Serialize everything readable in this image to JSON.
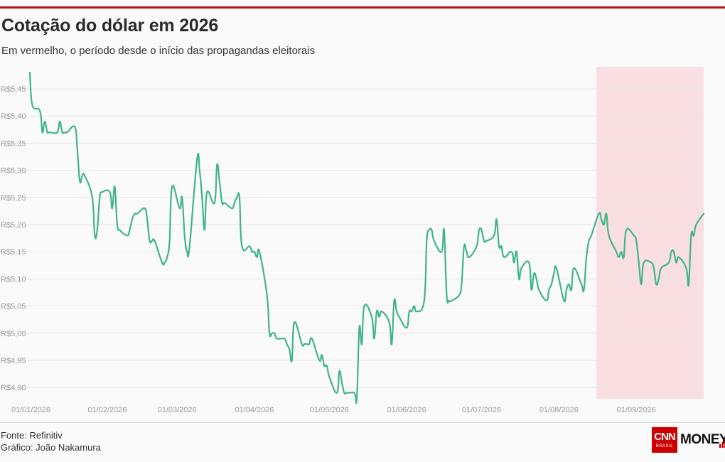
{
  "title": "Cotação do dólar em 2026",
  "subtitle": "Em vermelho, o período desde o início das propagandas eleitorais",
  "footer": {
    "source": "Fonte: Refinitiv",
    "credit": "Gráfico: João Nakamura"
  },
  "logo": {
    "cnn": "CNN",
    "brasil": "BRASIL",
    "money": "MONEY"
  },
  "colors": {
    "top_bar": "#b3141b",
    "line": "#41b48c",
    "highlight": "#f8c8cc",
    "grid": "#e6e6e6",
    "tick_text": "#9a9a9a",
    "brand_red": "#cc0000"
  },
  "chart_data": {
    "type": "line",
    "title": "Cotação do dólar em 2026",
    "subtitle": "Em vermelho, o período desde o início das propagandas eleitorais",
    "x_ticks": [
      "01/01/2026",
      "01/02/2026",
      "01/03/2026",
      "01/04/2026",
      "01/05/2026",
      "01/06/2026",
      "01/07/2026",
      "01/08/2026",
      "01/09/2026"
    ],
    "y_ticks": [
      {
        "value": 5.45,
        "label": "R$5,45"
      },
      {
        "value": 5.4,
        "label": "R$5,40"
      },
      {
        "value": 5.35,
        "label": "R$5,35"
      },
      {
        "value": 5.3,
        "label": "R$5,30"
      },
      {
        "value": 5.25,
        "label": "R$5,25"
      },
      {
        "value": 5.2,
        "label": "R$5,20"
      },
      {
        "value": 5.15,
        "label": "R$5,15"
      },
      {
        "value": 5.1,
        "label": "R$5,10"
      },
      {
        "value": 5.05,
        "label": "R$5,05"
      },
      {
        "value": 5.0,
        "label": "R$5,00"
      },
      {
        "value": 4.95,
        "label": "R$4,95"
      },
      {
        "value": 4.9,
        "label": "R$4,90"
      }
    ],
    "xlim": [
      "2026-01-01",
      "2026-09-28"
    ],
    "ylim": [
      4.88,
      5.49
    ],
    "grid": true,
    "highlight_range": [
      "2026-08-16",
      "2026-09-28"
    ],
    "series": [
      {
        "x": [
          "2026-01-01",
          "2026-01-02",
          "2026-01-05",
          "2026-01-06",
          "2026-01-07",
          "2026-01-08",
          "2026-01-09",
          "2026-01-12",
          "2026-01-13",
          "2026-01-14",
          "2026-01-15",
          "2026-01-16",
          "2026-01-19",
          "2026-01-20",
          "2026-01-21",
          "2026-01-22",
          "2026-01-23",
          "2026-01-26",
          "2026-01-27",
          "2026-01-28",
          "2026-01-29",
          "2026-01-30",
          "2026-02-02",
          "2026-02-03",
          "2026-02-04",
          "2026-02-05",
          "2026-02-06",
          "2026-02-09",
          "2026-02-10",
          "2026-02-11",
          "2026-02-12",
          "2026-02-13",
          "2026-02-16",
          "2026-02-17",
          "2026-02-18",
          "2026-02-19",
          "2026-02-20",
          "2026-02-23",
          "2026-02-24",
          "2026-02-25",
          "2026-02-26",
          "2026-02-27",
          "2026-03-02",
          "2026-03-03",
          "2026-03-04",
          "2026-03-05",
          "2026-03-06",
          "2026-03-09",
          "2026-03-10",
          "2026-03-11",
          "2026-03-12",
          "2026-03-13",
          "2026-03-16",
          "2026-03-17",
          "2026-03-18",
          "2026-03-19",
          "2026-03-20",
          "2026-03-23",
          "2026-03-24",
          "2026-03-25",
          "2026-03-26",
          "2026-03-27",
          "2026-03-30",
          "2026-03-31",
          "2026-04-01",
          "2026-04-02",
          "2026-04-03",
          "2026-04-06",
          "2026-04-07",
          "2026-04-08",
          "2026-04-09",
          "2026-04-10",
          "2026-04-13",
          "2026-04-14",
          "2026-04-15",
          "2026-04-16",
          "2026-04-17",
          "2026-04-20",
          "2026-04-21",
          "2026-04-22",
          "2026-04-23",
          "2026-04-24",
          "2026-04-27",
          "2026-04-28",
          "2026-04-29",
          "2026-04-30",
          "2026-05-01",
          "2026-05-04",
          "2026-05-05",
          "2026-05-06",
          "2026-05-07",
          "2026-05-08",
          "2026-05-11",
          "2026-05-12",
          "2026-05-13",
          "2026-05-14",
          "2026-05-15",
          "2026-05-18",
          "2026-05-19",
          "2026-05-20",
          "2026-05-21",
          "2026-05-22",
          "2026-05-25",
          "2026-05-26",
          "2026-05-27",
          "2026-05-28",
          "2026-05-29",
          "2026-06-01",
          "2026-06-02",
          "2026-06-03",
          "2026-06-04",
          "2026-06-05",
          "2026-06-08",
          "2026-06-09",
          "2026-06-10",
          "2026-06-11",
          "2026-06-12",
          "2026-06-15",
          "2026-06-16",
          "2026-06-17",
          "2026-06-18",
          "2026-06-19",
          "2026-06-22",
          "2026-06-23",
          "2026-06-24",
          "2026-06-25",
          "2026-06-26",
          "2026-06-29",
          "2026-06-30",
          "2026-07-01",
          "2026-07-02",
          "2026-07-03",
          "2026-07-06",
          "2026-07-07",
          "2026-07-08",
          "2026-07-09",
          "2026-07-10",
          "2026-07-13",
          "2026-07-14",
          "2026-07-15",
          "2026-07-16",
          "2026-07-17",
          "2026-07-20",
          "2026-07-21",
          "2026-07-22",
          "2026-07-23",
          "2026-07-24",
          "2026-07-27",
          "2026-07-28",
          "2026-07-29",
          "2026-07-30",
          "2026-07-31",
          "2026-08-03",
          "2026-08-04",
          "2026-08-05",
          "2026-08-06",
          "2026-08-07",
          "2026-08-10",
          "2026-08-11",
          "2026-08-12",
          "2026-08-13",
          "2026-08-14",
          "2026-08-17",
          "2026-08-18",
          "2026-08-19",
          "2026-08-20",
          "2026-08-21",
          "2026-08-24",
          "2026-08-25",
          "2026-08-26",
          "2026-08-27",
          "2026-08-28",
          "2026-08-31",
          "2026-09-01",
          "2026-09-02",
          "2026-09-03",
          "2026-09-04",
          "2026-09-07",
          "2026-09-08",
          "2026-09-09",
          "2026-09-10",
          "2026-09-11",
          "2026-09-14",
          "2026-09-15",
          "2026-09-16",
          "2026-09-17",
          "2026-09-18",
          "2026-09-21",
          "2026-09-22",
          "2026-09-23",
          "2026-09-24",
          "2026-09-25",
          "2026-09-28"
        ],
        "values": [
          5.48,
          5.42,
          5.41,
          5.37,
          5.39,
          5.37,
          5.37,
          5.37,
          5.39,
          5.37,
          5.37,
          5.37,
          5.38,
          5.34,
          5.28,
          5.29,
          5.29,
          5.25,
          5.18,
          5.19,
          5.25,
          5.26,
          5.26,
          5.23,
          5.27,
          5.2,
          5.19,
          5.18,
          5.19,
          5.21,
          5.22,
          5.22,
          5.23,
          5.21,
          5.17,
          5.17,
          5.17,
          5.13,
          5.13,
          5.14,
          5.17,
          5.27,
          5.23,
          5.25,
          5.18,
          5.15,
          5.16,
          5.32,
          5.3,
          5.25,
          5.19,
          5.26,
          5.24,
          5.31,
          5.28,
          5.24,
          5.24,
          5.23,
          5.24,
          5.25,
          5.25,
          5.16,
          5.16,
          5.15,
          5.15,
          5.14,
          5.15,
          5.07,
          5.0,
          5.0,
          5.0,
          4.99,
          4.99,
          4.98,
          4.97,
          4.95,
          5.02,
          4.98,
          4.98,
          4.98,
          4.98,
          4.99,
          4.95,
          4.96,
          4.94,
          4.94,
          4.92,
          4.89,
          4.93,
          4.91,
          4.89,
          4.89,
          4.89,
          4.88,
          5.01,
          4.98,
          5.05,
          5.03,
          4.99,
          5.04,
          5.03,
          5.04,
          5.02,
          4.98,
          5.06,
          5.04,
          5.03,
          5.01,
          5.04,
          5.04,
          5.05,
          5.04,
          5.06,
          5.17,
          5.19,
          5.19,
          5.17,
          5.15,
          5.19,
          5.07,
          5.06,
          5.06,
          5.07,
          5.09,
          5.16,
          5.15,
          5.14,
          5.16,
          5.19,
          5.19,
          5.17,
          5.17,
          5.18,
          5.21,
          5.16,
          5.16,
          5.14,
          5.15,
          5.13,
          5.15,
          5.1,
          5.12,
          5.13,
          5.08,
          5.11,
          5.1,
          5.08,
          5.06,
          5.08,
          5.09,
          5.11,
          5.12,
          5.06,
          5.08,
          5.09,
          5.08,
          5.12,
          5.09,
          5.08,
          5.14,
          5.17,
          5.18,
          5.22,
          5.21,
          5.2,
          5.22,
          5.18,
          5.15,
          5.14,
          5.15,
          5.14,
          5.19,
          5.18,
          5.17,
          5.13,
          5.09,
          5.13,
          5.13,
          5.12,
          5.09,
          5.1,
          5.12,
          5.13,
          5.15,
          5.15,
          5.13,
          5.14,
          5.12,
          5.09,
          5.18,
          5.18,
          5.2,
          5.22
        ]
      }
    ]
  }
}
